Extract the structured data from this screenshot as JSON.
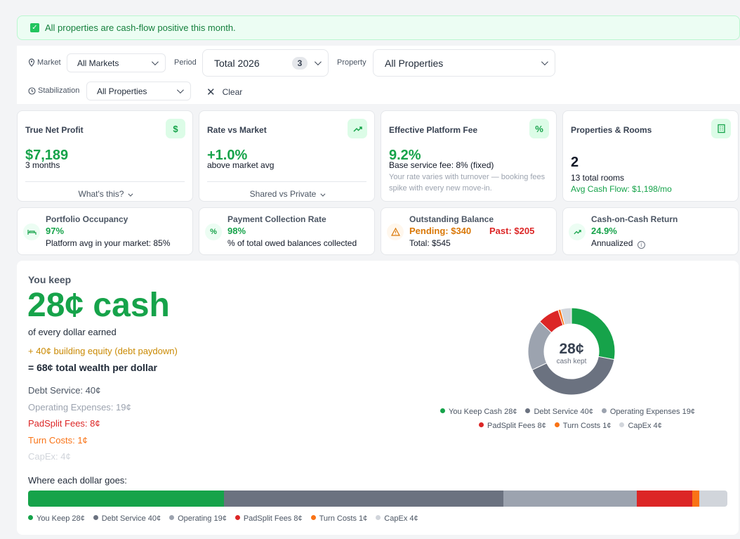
{
  "banner": {
    "text": "All properties are cash-flow positive this month."
  },
  "filters": {
    "market_label": "Market",
    "market_value": "All Markets",
    "period_label": "Period",
    "period_value": "Total 2026",
    "period_count": "3",
    "property_label": "Property",
    "property_value": "All Properties",
    "stab_label": "Stabilization",
    "stab_value": "All Properties",
    "clear_label": "Clear"
  },
  "cards": {
    "net_profit": {
      "title": "True Net Profit",
      "value": "$7,189",
      "sub": "3 months",
      "toggle": "What's this?",
      "icon": "$"
    },
    "rate": {
      "title": "Rate vs Market",
      "value": "+1.0%",
      "sub": "above market avg",
      "toggle": "Shared vs Private"
    },
    "fee": {
      "title": "Effective Platform Fee",
      "value": "9.2%",
      "sub": "Base service fee: 8% (fixed)",
      "note": "Your rate varies with turnover — booking fees spike with every new move-in.",
      "icon": "%"
    },
    "props": {
      "title": "Properties & Rooms",
      "value": "2",
      "sub": "13 total rooms",
      "cashflow": "Avg Cash Flow: $1,198/mo"
    }
  },
  "metrics": {
    "occupancy": {
      "title": "Portfolio Occupancy",
      "value": "97%",
      "sub": "Platform avg in your market: 85%"
    },
    "collection": {
      "title": "Payment Collection Rate",
      "value": "98%",
      "sub": "% of total owed balances collected",
      "icon": "%"
    },
    "outstanding": {
      "title": "Outstanding Balance",
      "pending": "Pending: $340",
      "past": "Past: $205",
      "total": "Total: $545"
    },
    "coc": {
      "title": "Cash-on-Cash Return",
      "value": "24.9%",
      "sub": "Annualized"
    }
  },
  "summary": {
    "you_keep": "You keep",
    "headline": "28¢ cash",
    "per_dollar": "of every dollar earned",
    "equity": "+ 40¢ building equity (debt paydown)",
    "total": "= 68¢ total wealth per dollar",
    "lines": [
      "Debt Service: 40¢",
      "Operating Expenses: 19¢",
      "PadSplit Fees: 8¢",
      "Turn Costs: 1¢",
      "CapEx: 4¢"
    ],
    "bar_title": "Where each dollar goes:",
    "donut_center": "28¢",
    "donut_sub": "cash kept",
    "donut_legend_1": [
      "You Keep Cash 28¢",
      "Debt Service 40¢",
      "Operating Expenses 19¢"
    ],
    "donut_legend_2": [
      "PadSplit Fees 8¢",
      "Turn Costs 1¢",
      "CapEx 4¢"
    ],
    "bar_legend": [
      "You Keep 28¢",
      "Debt Service 40¢",
      "Operating 19¢",
      "PadSplit Fees 8¢",
      "Turn Costs 1¢",
      "CapEx 4¢"
    ]
  },
  "breakdown": {
    "values": [
      28,
      40,
      19,
      8,
      1,
      4
    ],
    "colors": [
      "#16a34a",
      "#6b7280",
      "#9ca3af",
      "#dc2626",
      "#f97316",
      "#d1d5db"
    ]
  }
}
